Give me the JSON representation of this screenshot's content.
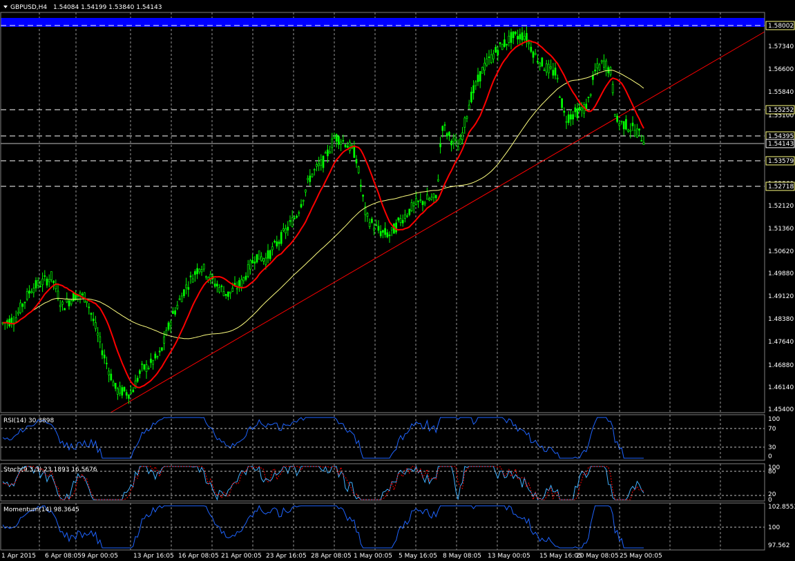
{
  "window": {
    "symbol_title": "GBPUSD,H4",
    "ohlc": "1.54084 1.54199 1.53840 1.54143"
  },
  "colors": {
    "background": "#000000",
    "grid": "#c0c0c0",
    "candle": "#00ff00",
    "ma_fast": "#ff0000",
    "ma_slow": "#ffff80",
    "trendline": "#ff0000",
    "resistance_band": "#0000ff",
    "oscillator": "#1e64ff",
    "signal": "#ff0000",
    "price_tag_bg": "#ffff80"
  },
  "main": {
    "price_axis": [
      "1.58002",
      "1.57340",
      "1.56600",
      "1.55840",
      "1.55100",
      "1.54395",
      "1.53579",
      "1.52860",
      "1.52120",
      "1.51360",
      "1.50620",
      "1.49880",
      "1.49120",
      "1.48380",
      "1.47640",
      "1.46880",
      "1.46140",
      "1.45400"
    ],
    "tagged_levels": [
      "1.58002",
      "1.55252",
      "1.54395",
      "1.53579",
      "1.52718"
    ],
    "current_price": "1.54143"
  },
  "rsi": {
    "title": "RSI(14) 30.3898",
    "scale": [
      "100",
      "70",
      "30",
      "0"
    ]
  },
  "stoch": {
    "title": "Stoch(9,3,3) 23.1893 16.5676",
    "scale": [
      "100",
      "80",
      "20",
      "0"
    ]
  },
  "momentum": {
    "title": "Momentum(14) 98.3645",
    "scale": [
      "102.8553",
      "100",
      "97.562"
    ]
  },
  "time_axis": [
    "1 Apr 2015",
    "6 Apr 08:05",
    "9 Apr 00:05",
    "13 Apr 16:05",
    "16 Apr 08:05",
    "21 Apr 00:05",
    "23 Apr 16:05",
    "28 Apr 08:05",
    "1 May 00:05",
    "5 May 16:05",
    "8 May 08:05",
    "13 May 00:05",
    "15 May 16:05",
    "20 May 08:05",
    "25 May 00:05"
  ],
  "chart_data": {
    "type": "candlestick",
    "symbol": "GBPUSD",
    "timeframe": "H4",
    "ohlc_last": {
      "open": 1.54084,
      "high": 1.54199,
      "low": 1.5384,
      "close": 1.54143
    },
    "y_range": [
      1.4505,
      1.5845
    ],
    "key_points": [
      {
        "time": "1 Apr 2015",
        "close": 1.48
      },
      {
        "time": "6 Apr 08:05",
        "close": 1.49
      },
      {
        "time": "9 Apr 00:05",
        "close": 1.47
      },
      {
        "time": "13 Apr 16:05",
        "close": 1.466
      },
      {
        "time": "16 Apr 08:05",
        "close": 1.495
      },
      {
        "time": "21 Apr 00:05",
        "close": 1.494
      },
      {
        "time": "23 Apr 16:05",
        "close": 1.508
      },
      {
        "time": "28 Apr 08:05",
        "close": 1.543
      },
      {
        "time": "1 May 00:05",
        "close": 1.512
      },
      {
        "time": "5 May 16:05",
        "close": 1.522
      },
      {
        "time": "8 May 08:05",
        "close": 1.543
      },
      {
        "time": "13 May 00:05",
        "close": 1.577
      },
      {
        "time": "15 May 16:05",
        "close": 1.566
      },
      {
        "time": "20 May 08:05",
        "close": 1.566
      },
      {
        "time": "25 May 00:05",
        "close": 1.5414
      }
    ],
    "indicators": {
      "rsi_14": 30.3898,
      "stoch_9_3_3": [
        23.1893,
        16.5676
      ],
      "momentum_14": 98.3645
    }
  }
}
